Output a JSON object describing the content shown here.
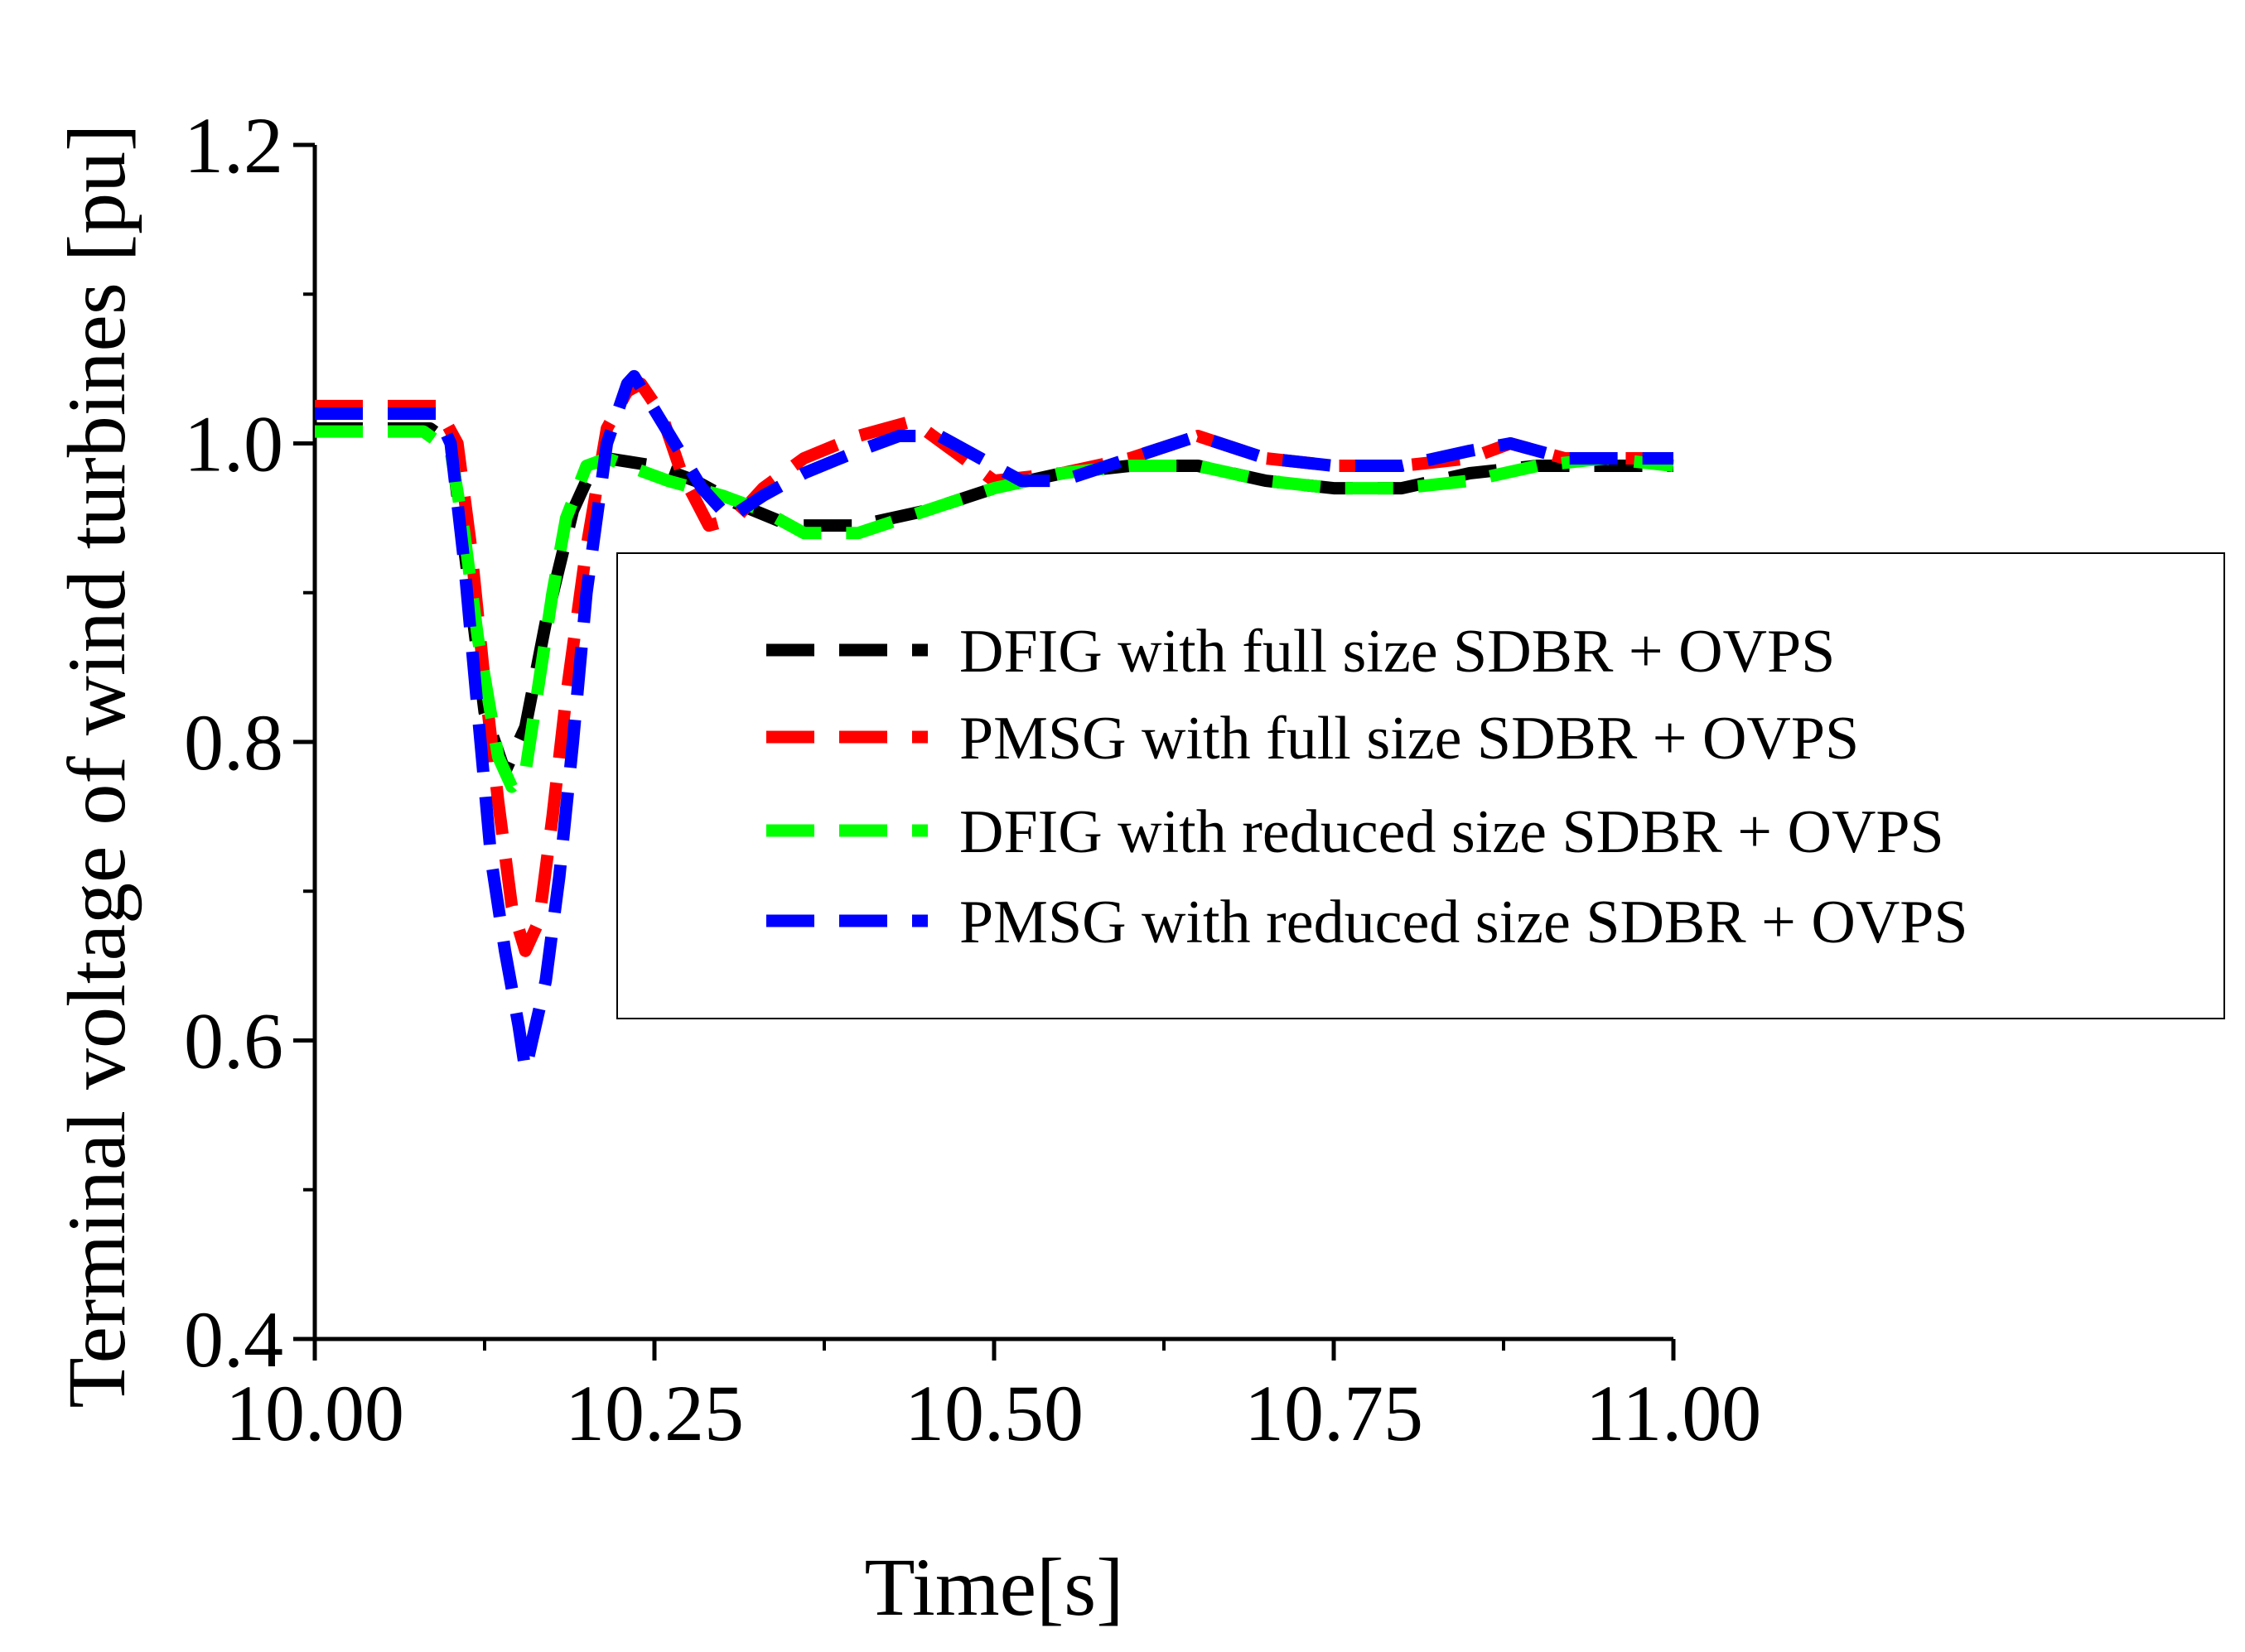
{
  "chart_data": {
    "type": "line",
    "title": "",
    "xlabel": "Time[s]",
    "ylabel": "Terminal voltage of wind turbines [pu]",
    "xlim": [
      10.0,
      11.0
    ],
    "ylim": [
      0.4,
      1.2
    ],
    "xticks": [
      "10.00",
      "10.25",
      "10.50",
      "10.75",
      "11.00"
    ],
    "yticks": [
      "0.4",
      "0.6",
      "0.8",
      "1.0",
      "1.2"
    ],
    "grid": false,
    "legend_position": "center-right",
    "series": [
      {
        "name": "DFIG with full size SDBR + OVPS",
        "color": "#000000",
        "x": [
          10.0,
          10.02,
          10.05,
          10.085,
          10.1,
          10.11,
          10.125,
          10.14,
          10.155,
          10.17,
          10.19,
          10.205,
          10.215,
          10.25,
          10.28,
          10.31,
          10.35,
          10.4,
          10.45,
          10.5,
          10.55,
          10.6,
          10.65,
          10.7,
          10.75,
          10.8,
          10.85,
          10.9,
          10.95,
          11.0
        ],
        "y": [
          1.01,
          1.01,
          1.01,
          1.01,
          1.0,
          0.93,
          0.82,
          0.78,
          0.81,
          0.88,
          0.955,
          0.985,
          0.99,
          0.985,
          0.975,
          0.96,
          0.945,
          0.945,
          0.955,
          0.97,
          0.98,
          0.985,
          0.985,
          0.975,
          0.97,
          0.97,
          0.98,
          0.985,
          0.985,
          0.985
        ]
      },
      {
        "name": "PMSG with full size SDBR + OVPS",
        "color": "#ff0000",
        "x": [
          10.0,
          10.03,
          10.06,
          10.09,
          10.105,
          10.115,
          10.125,
          10.135,
          10.145,
          10.155,
          10.165,
          10.175,
          10.185,
          10.2,
          10.215,
          10.23,
          10.24,
          10.255,
          10.27,
          10.29,
          10.31,
          10.33,
          10.36,
          10.4,
          10.44,
          10.47,
          10.5,
          10.55,
          10.6,
          10.65,
          10.7,
          10.75,
          10.8,
          10.85,
          10.88,
          10.92,
          11.0
        ],
        "y": [
          1.025,
          1.025,
          1.025,
          1.025,
          1.0,
          0.93,
          0.84,
          0.76,
          0.69,
          0.66,
          0.68,
          0.75,
          0.83,
          0.93,
          1.01,
          1.035,
          1.04,
          1.02,
          0.98,
          0.945,
          0.95,
          0.97,
          0.99,
          1.005,
          1.015,
          0.995,
          0.975,
          0.98,
          0.99,
          1.005,
          0.99,
          0.985,
          0.985,
          0.99,
          1.0,
          0.99,
          0.99
        ]
      },
      {
        "name": "DFIG with reduced size SDBR + OVPS",
        "color": "#00ff00",
        "x": [
          10.0,
          10.02,
          10.05,
          10.08,
          10.1,
          10.11,
          10.12,
          10.135,
          10.145,
          10.155,
          10.165,
          10.175,
          10.185,
          10.2,
          10.215,
          10.23,
          10.26,
          10.3,
          10.33,
          10.36,
          10.4,
          10.45,
          10.5,
          10.55,
          10.6,
          10.65,
          10.7,
          10.75,
          10.8,
          10.85,
          10.9,
          10.95,
          11.0
        ],
        "y": [
          1.008,
          1.008,
          1.008,
          1.008,
          0.995,
          0.94,
          0.87,
          0.79,
          0.77,
          0.78,
          0.84,
          0.9,
          0.95,
          0.985,
          0.99,
          0.985,
          0.975,
          0.965,
          0.955,
          0.94,
          0.94,
          0.955,
          0.97,
          0.98,
          0.985,
          0.985,
          0.975,
          0.97,
          0.97,
          0.975,
          0.985,
          0.99,
          0.985
        ]
      },
      {
        "name": "PMSG with reduced size SDBR + OVPS",
        "color": "#0000ff",
        "x": [
          10.0,
          10.03,
          10.06,
          10.09,
          10.1,
          10.11,
          10.12,
          10.13,
          10.14,
          10.15,
          10.155,
          10.16,
          10.17,
          10.18,
          10.19,
          10.2,
          10.215,
          10.23,
          10.235,
          10.245,
          10.265,
          10.285,
          10.305,
          10.33,
          10.36,
          10.4,
          10.43,
          10.46,
          10.49,
          10.52,
          10.55,
          10.6,
          10.65,
          10.7,
          10.75,
          10.8,
          10.85,
          10.88,
          10.92,
          11.0
        ],
        "y": [
          1.02,
          1.02,
          1.02,
          1.02,
          1.0,
          0.92,
          0.82,
          0.72,
          0.66,
          0.61,
          0.58,
          0.6,
          0.64,
          0.71,
          0.8,
          0.9,
          1.0,
          1.04,
          1.045,
          1.03,
          1.0,
          0.97,
          0.95,
          0.965,
          0.98,
          0.995,
          1.005,
          1.005,
          0.99,
          0.975,
          0.975,
          0.99,
          1.005,
          0.99,
          0.985,
          0.985,
          0.995,
          1.0,
          0.99,
          0.99
        ]
      }
    ]
  }
}
